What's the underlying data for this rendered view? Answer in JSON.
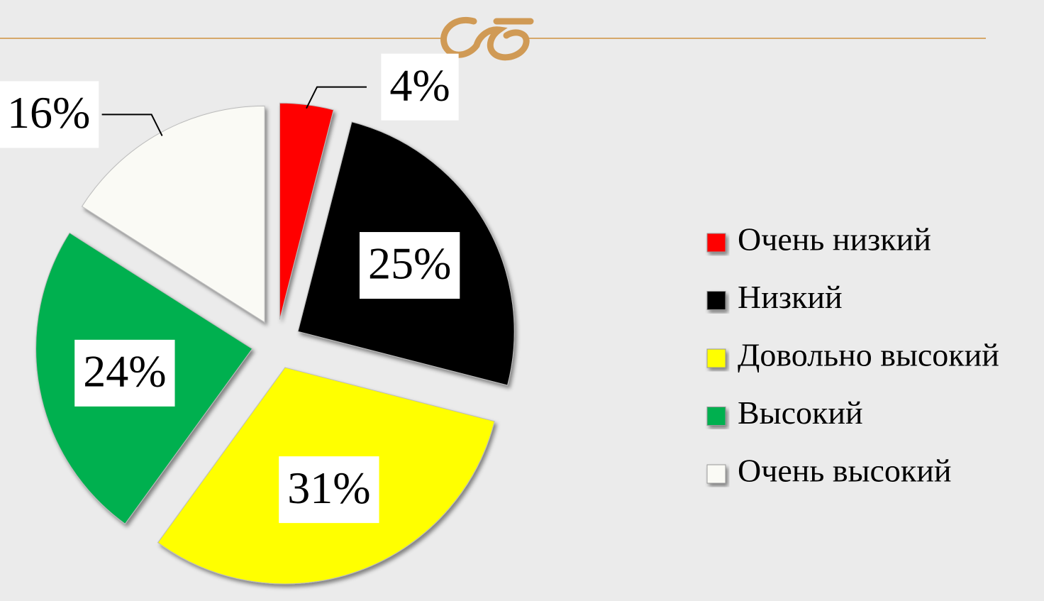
{
  "chart_data": {
    "type": "pie",
    "categories": [
      "Очень низкий",
      "Низкий",
      "Довольно высокий",
      "Высокий",
      "Очень высокий"
    ],
    "values": [
      4,
      25,
      31,
      24,
      16
    ],
    "value_labels": [
      "4%",
      "25%",
      "31%",
      "24%",
      "16%"
    ],
    "colors": [
      "#ff0000",
      "#000000",
      "#ffff00",
      "#00b050",
      "#fafaf5"
    ],
    "legend": "right"
  }
}
